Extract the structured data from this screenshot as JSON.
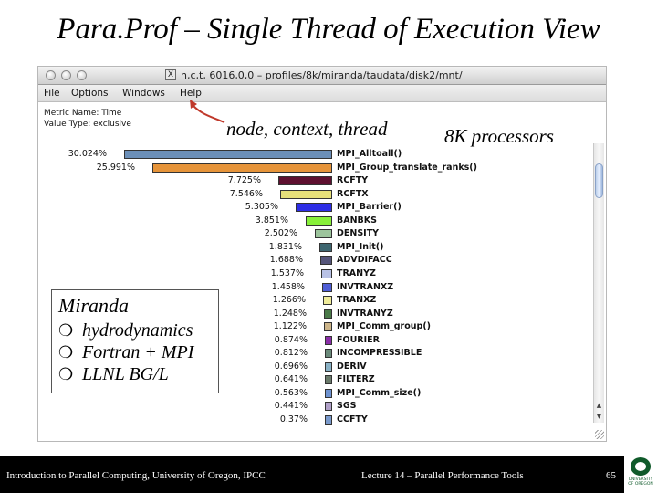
{
  "slide": {
    "title": "Para.Prof – Single Thread of Execution View"
  },
  "window": {
    "title": "n,c,t, 6016,0,0 – profiles/8k/miranda/taudata/disk2/mnt/",
    "menu": [
      "File",
      "Options",
      "Windows",
      "Help"
    ],
    "metric_name": "Metric Name: Time",
    "value_type": "Value Type: exclusive"
  },
  "annotations": {
    "node_context_thread": "node, context, thread",
    "processors": "8K processors"
  },
  "profile_rows": [
    {
      "pct": "30.024%",
      "value": 30.024,
      "name": "MPI_Alltoall()",
      "color": "#6b8fb8"
    },
    {
      "pct": "25.991%",
      "value": 25.991,
      "name": "MPI_Group_translate_ranks()",
      "color": "#e6943a"
    },
    {
      "pct": "7.725%",
      "value": 7.725,
      "name": "RCFTY",
      "color": "#5e1030"
    },
    {
      "pct": "7.546%",
      "value": 7.546,
      "name": "RCFTX",
      "color": "#e6e07a"
    },
    {
      "pct": "5.305%",
      "value": 5.305,
      "name": "MPI_Barrier()",
      "color": "#2e2ee6"
    },
    {
      "pct": "3.851%",
      "value": 3.851,
      "name": "BANBKS",
      "color": "#88f03a"
    },
    {
      "pct": "2.502%",
      "value": 2.502,
      "name": "DENSITY",
      "color": "#9cc49c"
    },
    {
      "pct": "1.831%",
      "value": 1.831,
      "name": "MPI_Init()",
      "color": "#3e6670"
    },
    {
      "pct": "1.688%",
      "value": 1.688,
      "name": "ADVDIFACC",
      "color": "#55557a"
    },
    {
      "pct": "1.537%",
      "value": 1.537,
      "name": "TRANYZ",
      "color": "#b9c2e6"
    },
    {
      "pct": "1.458%",
      "value": 1.458,
      "name": "INVTRANXZ",
      "color": "#4f5ed6"
    },
    {
      "pct": "1.266%",
      "value": 1.266,
      "name": "TRANXZ",
      "color": "#f0ec9a"
    },
    {
      "pct": "1.248%",
      "value": 1.248,
      "name": "INVTRANYZ",
      "color": "#4a7a48"
    },
    {
      "pct": "1.122%",
      "value": 1.122,
      "name": "MPI_Comm_group()",
      "color": "#cdb58a"
    },
    {
      "pct": "0.874%",
      "value": 0.874,
      "name": "FOURIER",
      "color": "#8a2ea8"
    },
    {
      "pct": "0.812%",
      "value": 0.812,
      "name": "INCOMPRESSIBLE",
      "color": "#6a8a7a"
    },
    {
      "pct": "0.696%",
      "value": 0.696,
      "name": "DERIV",
      "color": "#8ab2c6"
    },
    {
      "pct": "0.641%",
      "value": 0.641,
      "name": "FILTERZ",
      "color": "#6a7a6a"
    },
    {
      "pct": "0.563%",
      "value": 0.563,
      "name": "MPI_Comm_size()",
      "color": "#6e92d0"
    },
    {
      "pct": "0.441%",
      "value": 0.441,
      "name": "SGS",
      "color": "#b0a0c8"
    },
    {
      "pct": "0.37%",
      "value": 0.37,
      "name": "CCFTY",
      "color": "#7a9acc"
    }
  ],
  "miranda_box": {
    "title": "Miranda",
    "bullets": [
      "hydrodynamics",
      "Fortran + MPI",
      "LLNL BG/L"
    ],
    "bullet_icon": "❍"
  },
  "footer": {
    "left": "Introduction to Parallel Computing, University of Oregon, IPCC",
    "middle": "Lecture 14 – Parallel Performance Tools",
    "page": "65",
    "logo_text": "UNIVERSITY OF OREGON"
  }
}
